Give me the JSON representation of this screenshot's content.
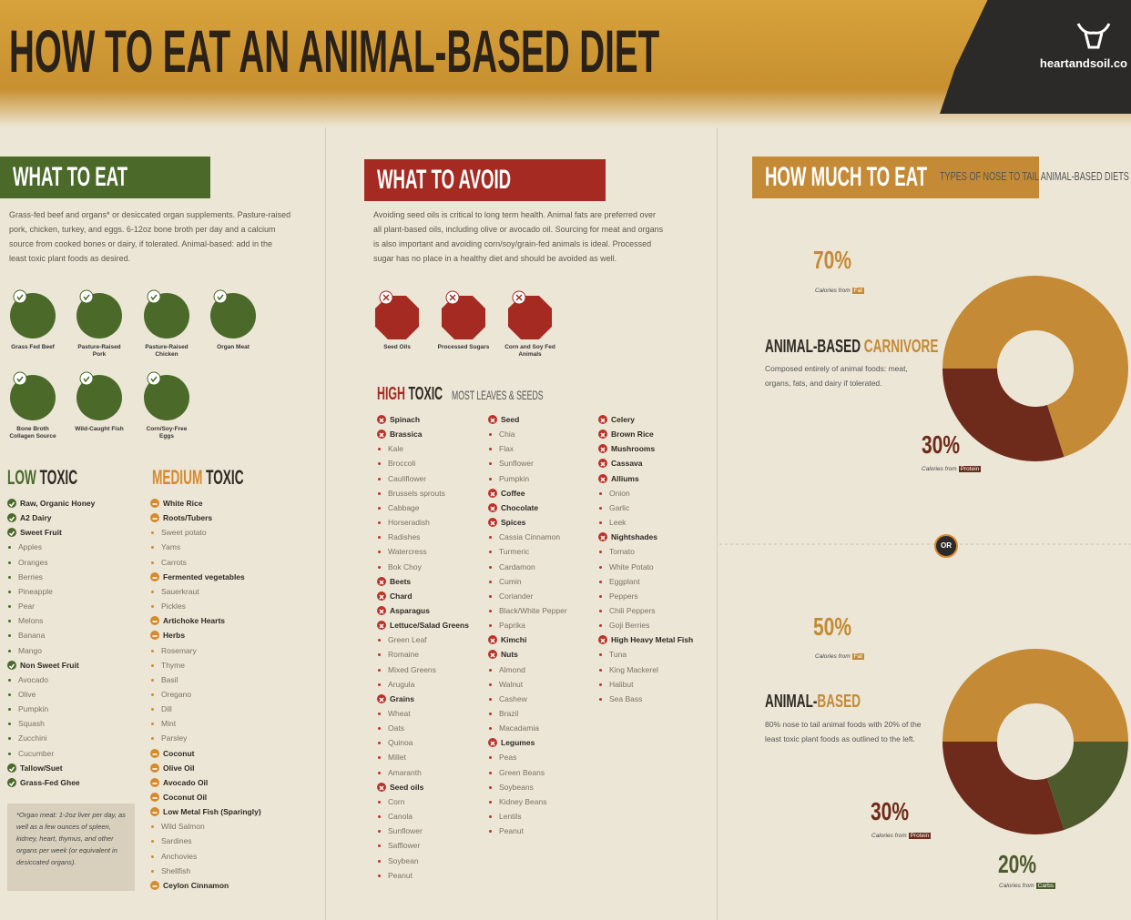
{
  "header": {
    "title": "HOW TO EAT AN ANIMAL-BASED DIET",
    "brand": "heartandsoil.co"
  },
  "what_to_eat": {
    "heading": "WHAT TO EAT",
    "text": "Grass-fed beef and organs* or desiccated organ supplements. Pasture-raised pork, chicken, turkey, and eggs. 6-12oz bone broth per day and a calcium source from cooked bones or dairy, if tolerated. Animal-based: add in the least toxic plant foods as desired.",
    "icons": [
      "Grass Fed Beef",
      "Pasture-Raised Pork",
      "Pasture-Raised Chicken",
      "Organ Meat",
      "Bone Broth Collagen Source",
      "Wild-Caught Fish",
      "Corn/Soy-Free Eggs"
    ],
    "low_toxic": {
      "heading_a": "LOW",
      "heading_b": "TOXIC",
      "items": [
        {
          "t": "Raw, Organic Honey"
        },
        {
          "t": "A2 Dairy"
        },
        {
          "t": "Sweet Fruit"
        },
        {
          "t": "Apples",
          "sub": true
        },
        {
          "t": "Oranges",
          "sub": true
        },
        {
          "t": "Berries",
          "sub": true
        },
        {
          "t": "Pineapple",
          "sub": true
        },
        {
          "t": "Pear",
          "sub": true
        },
        {
          "t": "Melons",
          "sub": true
        },
        {
          "t": "Banana",
          "sub": true
        },
        {
          "t": "Mango",
          "sub": true
        },
        {
          "t": "Non Sweet Fruit"
        },
        {
          "t": "Avocado",
          "sub": true
        },
        {
          "t": "Olive",
          "sub": true
        },
        {
          "t": "Pumpkin",
          "sub": true
        },
        {
          "t": "Squash",
          "sub": true
        },
        {
          "t": "Zucchini",
          "sub": true
        },
        {
          "t": "Cucumber",
          "sub": true
        },
        {
          "t": "Tallow/Suet"
        },
        {
          "t": "Grass-Fed Ghee"
        }
      ]
    },
    "medium_toxic": {
      "heading_a": "MEDIUM",
      "heading_b": "TOXIC",
      "items": [
        {
          "t": "White Rice"
        },
        {
          "t": "Roots/Tubers"
        },
        {
          "t": "Sweet potato",
          "sub": true
        },
        {
          "t": "Yams",
          "sub": true
        },
        {
          "t": "Carrots",
          "sub": true
        },
        {
          "t": "Fermented vegetables"
        },
        {
          "t": "Sauerkraut",
          "sub": true
        },
        {
          "t": "Pickles",
          "sub": true
        },
        {
          "t": "Artichoke Hearts"
        },
        {
          "t": "Herbs"
        },
        {
          "t": "Rosemary",
          "sub": true
        },
        {
          "t": "Thyme",
          "sub": true
        },
        {
          "t": "Basil",
          "sub": true
        },
        {
          "t": "Oregano",
          "sub": true
        },
        {
          "t": "Dill",
          "sub": true
        },
        {
          "t": "Mint",
          "sub": true
        },
        {
          "t": "Parsley",
          "sub": true
        },
        {
          "t": "Coconut"
        },
        {
          "t": "Olive Oil"
        },
        {
          "t": "Avocado Oil"
        },
        {
          "t": "Coconut Oil"
        },
        {
          "t": "Low Metal Fish (Sparingly)"
        },
        {
          "t": "Wild Salmon",
          "sub": true
        },
        {
          "t": "Sardines",
          "sub": true
        },
        {
          "t": "Anchovies",
          "sub": true
        },
        {
          "t": "Shellfish",
          "sub": true
        },
        {
          "t": "Ceylon Cinnamon"
        }
      ]
    },
    "note": "*Organ meat: 1-2oz liver per day, as well as a few ounces of spleen, kidney, heart, thymus, and other organs per week (or equivalent in desiccated organs)."
  },
  "what_to_avoid": {
    "heading": "WHAT TO AVOID",
    "text": "Avoiding seed oils is critical to long term health. Animal fats are preferred over all plant-based oils, including olive or avocado oil. Sourcing for meat and organs is also important and avoiding corn/soy/grain-fed animals is ideal. Processed sugar has no place in a healthy diet and should be avoided as well.",
    "icons": [
      "Seed Oils",
      "Processed Sugars",
      "Corn and Soy Fed Animals"
    ],
    "high_toxic": {
      "heading_a": "HIGH",
      "heading_b": "TOXIC",
      "subtitle": "MOST LEAVES & SEEDS",
      "columns": [
        [
          {
            "t": "Spinach"
          },
          {
            "t": "Brassica"
          },
          {
            "t": "Kale",
            "sub": true
          },
          {
            "t": "Broccoli",
            "sub": true
          },
          {
            "t": "Cauliflower",
            "sub": true
          },
          {
            "t": "Brussels sprouts",
            "sub": true
          },
          {
            "t": "Cabbage",
            "sub": true
          },
          {
            "t": "Horseradish",
            "sub": true
          },
          {
            "t": "Radishes",
            "sub": true
          },
          {
            "t": "Watercress",
            "sub": true
          },
          {
            "t": "Bok Choy",
            "sub": true
          },
          {
            "t": "Beets"
          },
          {
            "t": "Chard"
          },
          {
            "t": "Asparagus"
          },
          {
            "t": "Lettuce/Salad Greens"
          },
          {
            "t": "Green Leaf",
            "sub": true
          },
          {
            "t": "Romaine",
            "sub": true
          },
          {
            "t": "Mixed Greens",
            "sub": true
          },
          {
            "t": "Arugula",
            "sub": true
          },
          {
            "t": "Grains"
          },
          {
            "t": "Wheat",
            "sub": true
          },
          {
            "t": "Oats",
            "sub": true
          },
          {
            "t": "Quinoa",
            "sub": true
          },
          {
            "t": "Millet",
            "sub": true
          },
          {
            "t": "Amaranth",
            "sub": true
          },
          {
            "t": "Seed oils"
          },
          {
            "t": "Corn",
            "sub": true
          },
          {
            "t": "Canola",
            "sub": true
          },
          {
            "t": "Sunflower",
            "sub": true
          },
          {
            "t": "Safflower",
            "sub": true
          },
          {
            "t": "Soybean",
            "sub": true
          },
          {
            "t": "Peanut",
            "sub": true
          }
        ],
        [
          {
            "t": "Seed"
          },
          {
            "t": "Chia",
            "sub": true
          },
          {
            "t": "Flax",
            "sub": true
          },
          {
            "t": "Sunflower",
            "sub": true
          },
          {
            "t": "Pumpkin",
            "sub": true
          },
          {
            "t": "Coffee"
          },
          {
            "t": "Chocolate"
          },
          {
            "t": "Spices"
          },
          {
            "t": "Cassia Cinnamon",
            "sub": true
          },
          {
            "t": "Turmeric",
            "sub": true
          },
          {
            "t": "Cardamon",
            "sub": true
          },
          {
            "t": "Cumin",
            "sub": true
          },
          {
            "t": "Coriander",
            "sub": true
          },
          {
            "t": "Black/White Pepper",
            "sub": true
          },
          {
            "t": "Paprika",
            "sub": true
          },
          {
            "t": "Kimchi"
          },
          {
            "t": "Nuts"
          },
          {
            "t": "Almond",
            "sub": true
          },
          {
            "t": "Walnut",
            "sub": true
          },
          {
            "t": "Cashew",
            "sub": true
          },
          {
            "t": "Brazil",
            "sub": true
          },
          {
            "t": "Macadamia",
            "sub": true
          },
          {
            "t": "Legumes"
          },
          {
            "t": "Peas",
            "sub": true
          },
          {
            "t": "Green Beans",
            "sub": true
          },
          {
            "t": "Soybeans",
            "sub": true
          },
          {
            "t": "Kidney Beans",
            "sub": true
          },
          {
            "t": "Lentils",
            "sub": true
          },
          {
            "t": "Peanut",
            "sub": true
          }
        ],
        [
          {
            "t": "Celery"
          },
          {
            "t": "Brown Rice"
          },
          {
            "t": "Mushrooms"
          },
          {
            "t": "Cassava"
          },
          {
            "t": "Alliums"
          },
          {
            "t": "Onion",
            "sub": true
          },
          {
            "t": "Garlic",
            "sub": true
          },
          {
            "t": "Leek",
            "sub": true
          },
          {
            "t": "Nightshades"
          },
          {
            "t": "Tomato",
            "sub": true
          },
          {
            "t": "White Potato",
            "sub": true
          },
          {
            "t": "Eggplant",
            "sub": true
          },
          {
            "t": "Peppers",
            "sub": true
          },
          {
            "t": "Chili Peppers",
            "sub": true
          },
          {
            "t": "Goji Berries",
            "sub": true
          },
          {
            "t": "High Heavy Metal Fish"
          },
          {
            "t": "Tuna",
            "sub": true
          },
          {
            "t": "King Mackerel",
            "sub": true
          },
          {
            "t": "Halibut",
            "sub": true
          },
          {
            "t": "Sea Bass",
            "sub": true
          }
        ]
      ]
    }
  },
  "how_much": {
    "heading": "HOW MUCH TO EAT",
    "subtitle": "TYPES OF NOSE TO TAIL ANIMAL-BASED DIETS",
    "or": "OR",
    "diets": [
      {
        "name_a": "ANIMAL-BASED ",
        "name_b": "CARNIVORE",
        "description": "Composed entirely of animal foods: meat, organs, fats, and dairy if tolerated."
      },
      {
        "name_a": "ANIMAL-",
        "name_b": "BASED",
        "description": "80% nose to tail animal foods with 20% of the least toxic plant foods as outlined to the left."
      }
    ]
  },
  "chart_data": [
    {
      "type": "pie",
      "caption": "Calories from",
      "categories": [
        "Fat",
        "Protein"
      ],
      "values": [
        70,
        30
      ],
      "value_labels": [
        "70%",
        "30%"
      ],
      "colors": [
        "#c48a35",
        "#6e2a1a"
      ]
    },
    {
      "type": "pie",
      "caption": "Calories from",
      "categories": [
        "Fat",
        "Protein",
        "Carbs"
      ],
      "values": [
        50,
        30,
        20
      ],
      "value_labels": [
        "50%",
        "30%",
        "20%"
      ],
      "colors": [
        "#c48a35",
        "#6e2a1a",
        "#4d5a2c"
      ]
    }
  ]
}
